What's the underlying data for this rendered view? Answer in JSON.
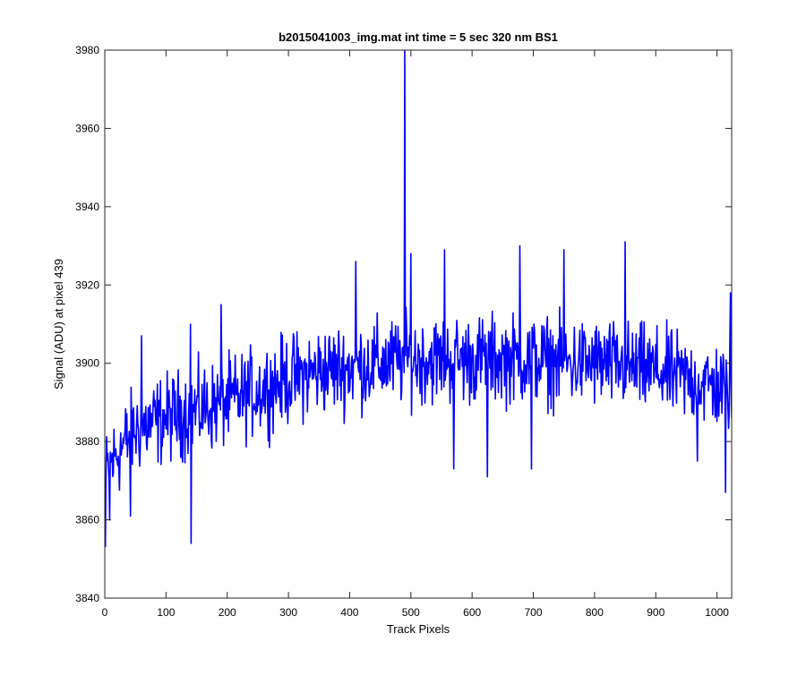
{
  "chart_data": {
    "type": "line",
    "title": "b2015041003_img.mat int time = 5 sec  320 nm BS1",
    "xlabel": "Track Pixels",
    "ylabel": "Signal (ADU) at pixel 439",
    "xlim": [
      0,
      1024
    ],
    "ylim": [
      3840,
      3980
    ],
    "xticks": [
      0,
      100,
      200,
      300,
      400,
      500,
      600,
      700,
      800,
      900,
      1000
    ],
    "yticks": [
      3840,
      3860,
      3880,
      3900,
      3920,
      3940,
      3960,
      3980
    ],
    "grid": false,
    "series": [
      {
        "color": "#0000ff",
        "trend": {
          "x": [
            0,
            20,
            50,
            100,
            150,
            200,
            250,
            300,
            350,
            400,
            450,
            500,
            550,
            600,
            650,
            700,
            750,
            800,
            850,
            900,
            950,
            1000,
            1024
          ],
          "y": [
            3871,
            3877,
            3883,
            3886,
            3888,
            3890,
            3893,
            3896,
            3898,
            3899,
            3900,
            3901,
            3901,
            3901,
            3901,
            3901,
            3900,
            3900,
            3899,
            3898,
            3896,
            3894,
            3893
          ]
        },
        "noise_amplitude": 11,
        "features": [
          {
            "x": 490,
            "y": 3980
          },
          {
            "x": 141,
            "y": 3854
          },
          {
            "x": 1,
            "y": 3853
          },
          {
            "x": 8,
            "y": 3860
          },
          {
            "x": 42,
            "y": 3861
          },
          {
            "x": 625,
            "y": 3871
          },
          {
            "x": 697,
            "y": 3873
          },
          {
            "x": 1014,
            "y": 3867
          },
          {
            "x": 968,
            "y": 3875
          },
          {
            "x": 570,
            "y": 3873
          },
          {
            "x": 850,
            "y": 3931
          },
          {
            "x": 678,
            "y": 3930
          },
          {
            "x": 555,
            "y": 3929
          },
          {
            "x": 750,
            "y": 3929
          },
          {
            "x": 500,
            "y": 3928
          },
          {
            "x": 410,
            "y": 3926
          },
          {
            "x": 1022,
            "y": 3918
          },
          {
            "x": 190,
            "y": 3915
          },
          {
            "x": 140,
            "y": 3910
          },
          {
            "x": 60,
            "y": 3907
          }
        ]
      }
    ]
  }
}
